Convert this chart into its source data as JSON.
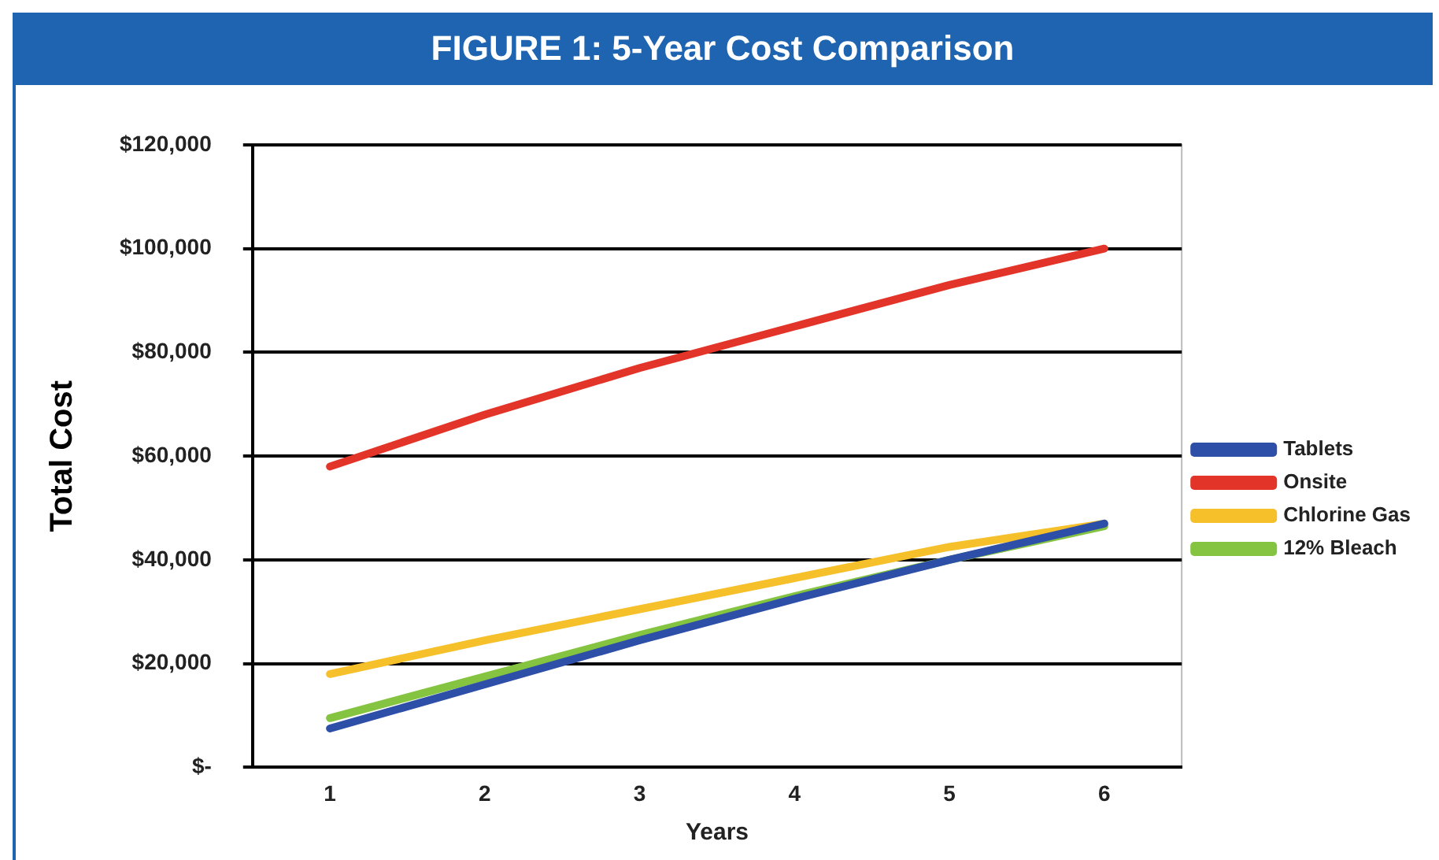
{
  "chart_data": {
    "type": "line",
    "title": "FIGURE 1: 5-Year Cost Comparison",
    "xlabel": "Years",
    "ylabel": "Total Cost",
    "categories": [
      "1",
      "2",
      "3",
      "4",
      "5",
      "6"
    ],
    "series": [
      {
        "name": "Tablets",
        "color": "#2e4fa8",
        "values": [
          7500,
          16000,
          24500,
          32500,
          40000,
          47000
        ]
      },
      {
        "name": "Onsite",
        "color": "#e3342a",
        "values": [
          58000,
          68000,
          77000,
          85000,
          93000,
          100000
        ]
      },
      {
        "name": "Chlorine Gas",
        "color": "#f5c02a",
        "values": [
          18000,
          24500,
          30500,
          36500,
          42500,
          47000
        ]
      },
      {
        "name": "12% Bleach",
        "color": "#84c441",
        "values": [
          9500,
          17500,
          25500,
          33000,
          40000,
          46500
        ]
      }
    ],
    "ylim": [
      0,
      120000
    ],
    "yticks": [
      {
        "value": 0,
        "label": "$-"
      },
      {
        "value": 20000,
        "label": "$20,000"
      },
      {
        "value": 40000,
        "label": "$40,000"
      },
      {
        "value": 60000,
        "label": "$60,000"
      },
      {
        "value": 80000,
        "label": "$80,000"
      },
      {
        "value": 100000,
        "label": "$100,000"
      },
      {
        "value": 120000,
        "label": "$120,000"
      }
    ],
    "grid": "y",
    "legend": "right",
    "marker": "none",
    "line_style": "solid"
  }
}
